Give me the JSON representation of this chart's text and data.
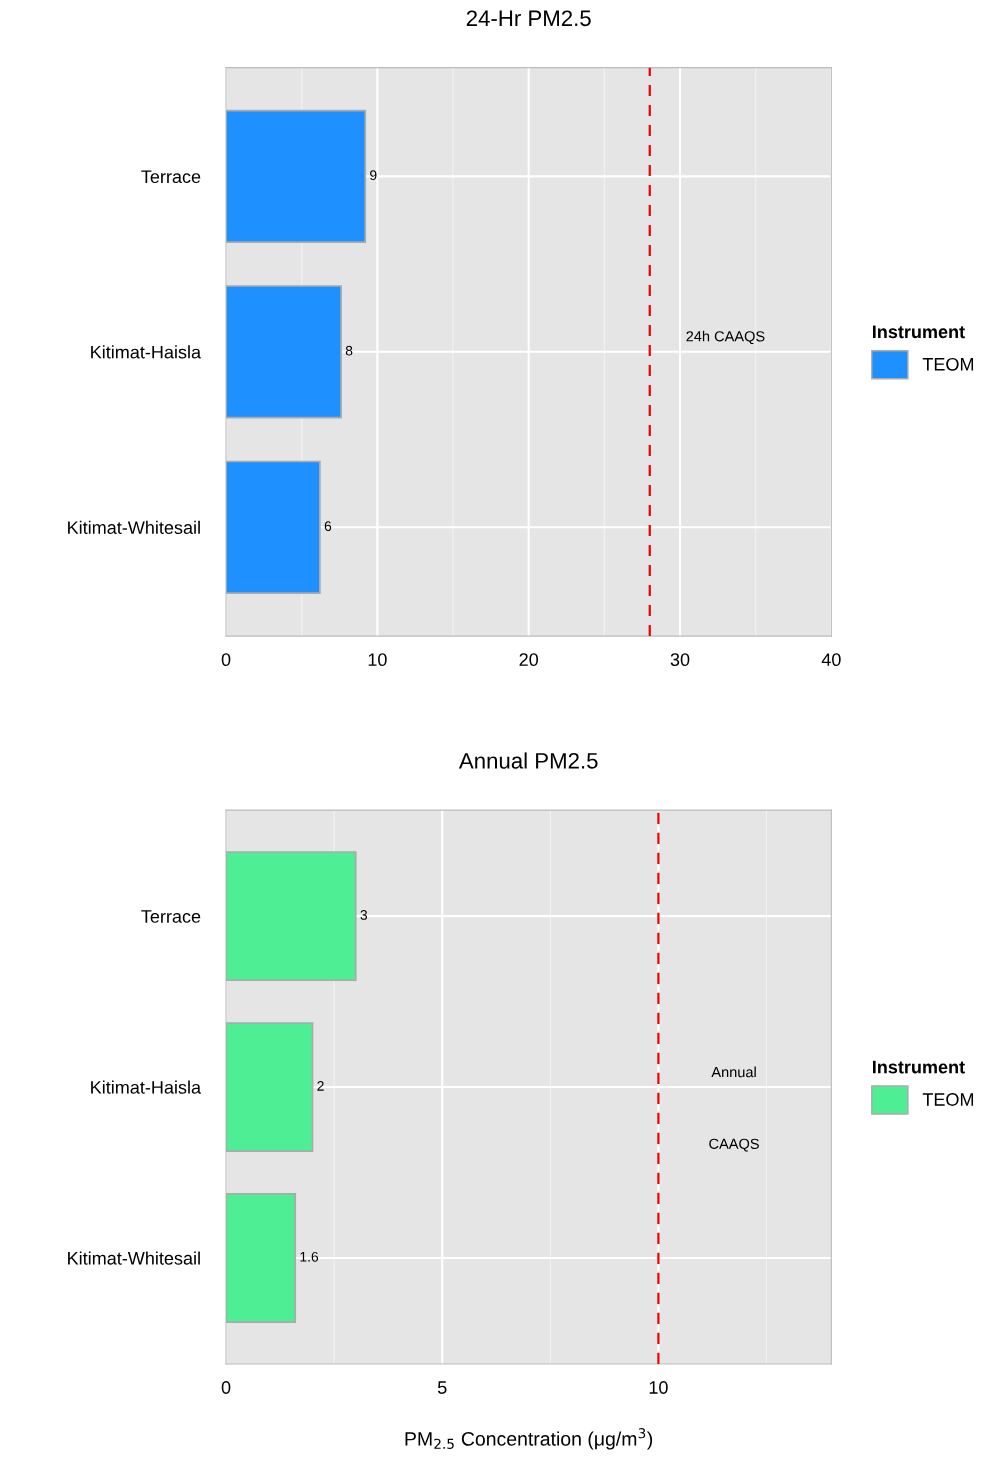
{
  "chart_data": [
    {
      "type": "bar",
      "orientation": "horizontal",
      "title": "24-Hr PM2.5",
      "categories": [
        "Terrace",
        "Kitimat-Haisla",
        "Kitimat-Whitesail"
      ],
      "series": [
        {
          "name": "TEOM",
          "color": "#1e90ff",
          "values": [
            9.2,
            7.6,
            6.2
          ],
          "value_labels": [
            "9",
            "8",
            "6"
          ]
        }
      ],
      "legend_title": "Instrument",
      "legend": "right",
      "grid": true,
      "xlim": [
        0,
        40
      ],
      "xticks": [
        0,
        10,
        20,
        30,
        40
      ],
      "ref_lines": [
        {
          "axis": "x",
          "value": 28,
          "label": "24h CAAQS",
          "color": "#ee0000",
          "line_style": "dashed"
        }
      ]
    },
    {
      "type": "bar",
      "orientation": "horizontal",
      "title": "Annual PM2.5",
      "xlabel": "PM$_{2.5}$ Concentration (μg/m$^{3}$)",
      "categories": [
        "Terrace",
        "Kitimat-Haisla",
        "Kitimat-Whitesail"
      ],
      "series": [
        {
          "name": "TEOM",
          "color": "#4eee94",
          "values": [
            3.0,
            2.0,
            1.6
          ],
          "value_labels": [
            "3",
            "2",
            "1.6"
          ]
        }
      ],
      "legend_title": "Instrument",
      "legend": "right",
      "grid": true,
      "xlim": [
        0,
        14
      ],
      "xticks": [
        0,
        5,
        10
      ],
      "ref_lines": [
        {
          "axis": "x",
          "value": 10,
          "label": "Annual\nCAAQS",
          "color": "#ee0000",
          "line_style": "dashed"
        }
      ]
    }
  ]
}
